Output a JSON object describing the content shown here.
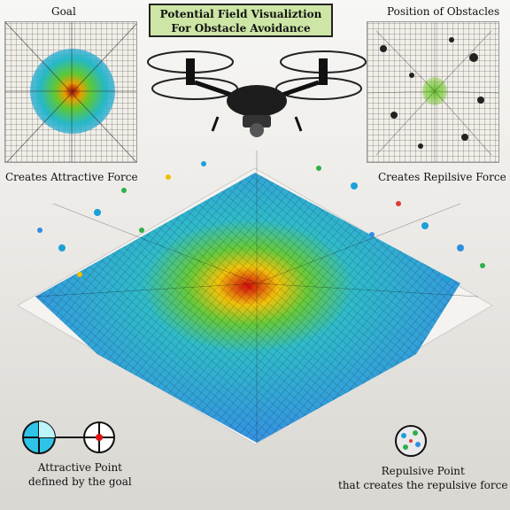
{
  "title": "Potential Field Visualiztion For Obstacle Avoidance",
  "labels": {
    "goal": "Goal",
    "obstacles": "Position of Obstacles",
    "attractive_force": "Creates Attractive Force",
    "repulsive_force": "Creates Repilsive Force",
    "attractive_point_line1": "Attractive Point",
    "attractive_point_line2": "defined by the goal",
    "repulsive_point_line1": "Repulsive Point",
    "repulsive_point_line2": "that creates the repulsive force"
  },
  "icons": [
    "drone-icon",
    "attractive-point-icon",
    "target-icon",
    "repulsive-point-icon"
  ],
  "colors": {
    "title_background": "#cde6a6",
    "field_high": "#d40000",
    "field_mid": "#f0c000",
    "field_green": "#5fc832",
    "field_low": "#25a0e0"
  }
}
